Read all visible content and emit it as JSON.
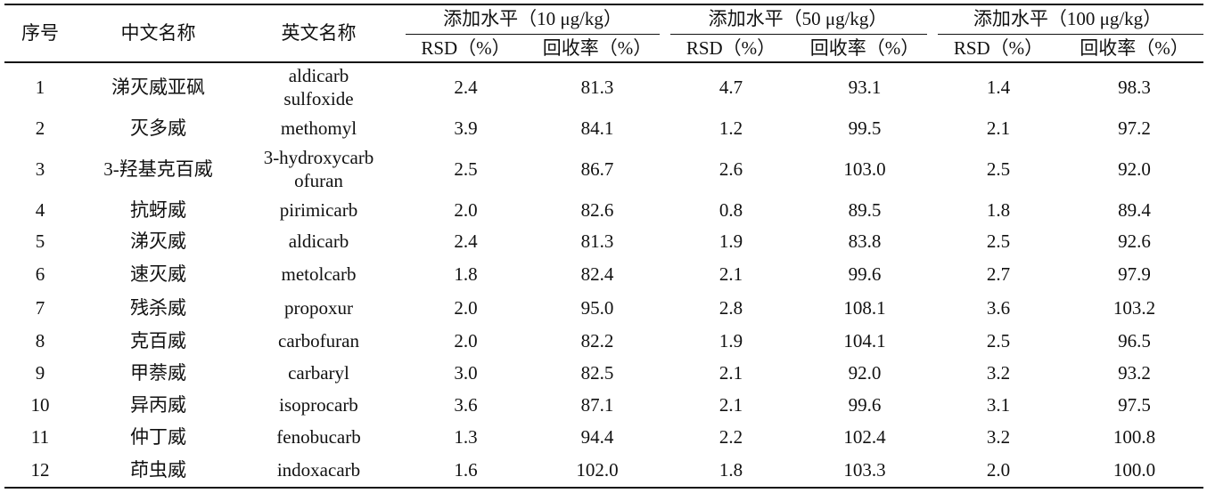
{
  "header": {
    "columns": [
      "序号",
      "中文名称",
      "英文名称"
    ],
    "groups": [
      "添加水平（10 μg/kg）",
      "添加水平（50 μg/kg）",
      "添加水平（100 μg/kg）"
    ],
    "subheaders": [
      "RSD（%）",
      "回收率（%）",
      "RSD（%）",
      "回收率（%）",
      "RSD（%）",
      "回收率（%）"
    ]
  },
  "rows": [
    [
      "1",
      "涕灭威亚砜",
      "aldicarb\nsulfoxide",
      "2.4",
      "81.3",
      "4.7",
      "93.1",
      "1.4",
      "98.3"
    ],
    [
      "2",
      "灭多威",
      "methomyl",
      "3.9",
      "84.1",
      "1.2",
      "99.5",
      "2.1",
      "97.2"
    ],
    [
      "3",
      "3-羟基克百威",
      "3-hydroxycarb\nofuran",
      "2.5",
      "86.7",
      "2.6",
      "103.0",
      "2.5",
      "92.0"
    ],
    [
      "4",
      "抗蚜威",
      "pirimicarb",
      "2.0",
      "82.6",
      "0.8",
      "89.5",
      "1.8",
      "89.4"
    ],
    [
      "5",
      "涕灭威",
      "aldicarb",
      "2.4",
      "81.3",
      "1.9",
      "83.8",
      "2.5",
      "92.6"
    ],
    [
      "6",
      "速灭威",
      "metolcarb",
      "1.8",
      "82.4",
      "2.1",
      "99.6",
      "2.7",
      "97.9"
    ],
    [
      "7",
      "残杀威",
      "propoxur",
      "2.0",
      "95.0",
      "2.8",
      "108.1",
      "3.6",
      "103.2"
    ],
    [
      "8",
      "克百威",
      "carbofuran",
      "2.0",
      "82.2",
      "1.9",
      "104.1",
      "2.5",
      "96.5"
    ],
    [
      "9",
      "甲萘威",
      "carbaryl",
      "3.0",
      "82.5",
      "2.1",
      "92.0",
      "3.2",
      "93.2"
    ],
    [
      "10",
      "异丙威",
      "isoprocarb",
      "3.6",
      "87.1",
      "2.1",
      "99.6",
      "3.1",
      "97.5"
    ],
    [
      "11",
      "仲丁威",
      "fenobucarb",
      "1.3",
      "94.4",
      "2.2",
      "102.4",
      "3.2",
      "100.8"
    ],
    [
      "12",
      "茚虫威",
      "indoxacarb",
      "1.6",
      "102.0",
      "1.8",
      "103.3",
      "2.0",
      "100.0"
    ]
  ]
}
